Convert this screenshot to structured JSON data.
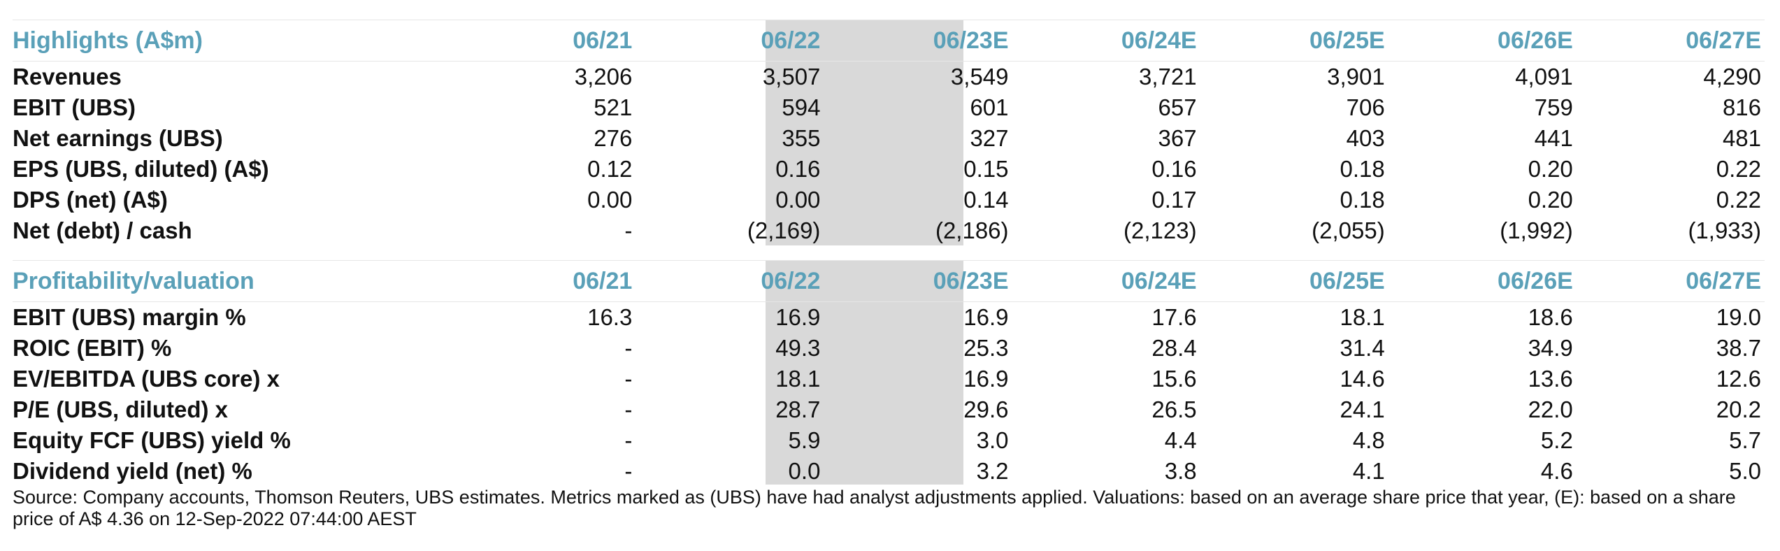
{
  "section1": {
    "header": [
      "Highlights (A$m)",
      "06/21",
      "06/22",
      "06/23E",
      "06/24E",
      "06/25E",
      "06/26E",
      "06/27E"
    ],
    "rows": [
      {
        "label": "Revenues",
        "values": [
          "3,206",
          "3,507",
          "3,549",
          "3,721",
          "3,901",
          "4,091",
          "4,290"
        ]
      },
      {
        "label": "EBIT (UBS)",
        "values": [
          "521",
          "594",
          "601",
          "657",
          "706",
          "759",
          "816"
        ]
      },
      {
        "label": "Net earnings (UBS)",
        "values": [
          "276",
          "355",
          "327",
          "367",
          "403",
          "441",
          "481"
        ]
      },
      {
        "label": "EPS (UBS, diluted) (A$)",
        "values": [
          "0.12",
          "0.16",
          "0.15",
          "0.16",
          "0.18",
          "0.20",
          "0.22"
        ]
      },
      {
        "label": "DPS (net) (A$)",
        "values": [
          "0.00",
          "0.00",
          "0.14",
          "0.17",
          "0.18",
          "0.20",
          "0.22"
        ]
      },
      {
        "label": "Net (debt) / cash",
        "values": [
          "-",
          "(2,169)",
          "(2,186)",
          "(2,123)",
          "(2,055)",
          "(1,992)",
          "(1,933)"
        ]
      }
    ]
  },
  "section2": {
    "header": [
      "Profitability/valuation",
      "06/21",
      "06/22",
      "06/23E",
      "06/24E",
      "06/25E",
      "06/26E",
      "06/27E"
    ],
    "rows": [
      {
        "label": "EBIT (UBS) margin %",
        "values": [
          "16.3",
          "16.9",
          "16.9",
          "17.6",
          "18.1",
          "18.6",
          "19.0"
        ]
      },
      {
        "label": "ROIC (EBIT) %",
        "values": [
          "-",
          "49.3",
          "25.3",
          "28.4",
          "31.4",
          "34.9",
          "38.7"
        ]
      },
      {
        "label": "EV/EBITDA (UBS core) x",
        "values": [
          "-",
          "18.1",
          "16.9",
          "15.6",
          "14.6",
          "13.6",
          "12.6"
        ]
      },
      {
        "label": "P/E (UBS, diluted) x",
        "values": [
          "-",
          "28.7",
          "29.6",
          "26.5",
          "24.1",
          "22.0",
          "20.2"
        ]
      },
      {
        "label": "Equity FCF (UBS) yield %",
        "values": [
          "-",
          "5.9",
          "3.0",
          "4.4",
          "4.8",
          "5.2",
          "5.7"
        ]
      },
      {
        "label": "Dividend yield (net) %",
        "values": [
          "-",
          "0.0",
          "3.2",
          "3.8",
          "4.1",
          "4.6",
          "5.0"
        ]
      }
    ]
  },
  "colors": {
    "header_text": "#5aa0b8",
    "highlight_band": "#d9d9d9"
  },
  "footnote": "Source: Company accounts, Thomson Reuters, UBS estimates. Metrics marked as (UBS) have had analyst adjustments applied. Valuations: based on an average share price that year, (E): based on a share price of A$ 4.36 on 12-Sep-2022 07:44:00 AEST"
}
